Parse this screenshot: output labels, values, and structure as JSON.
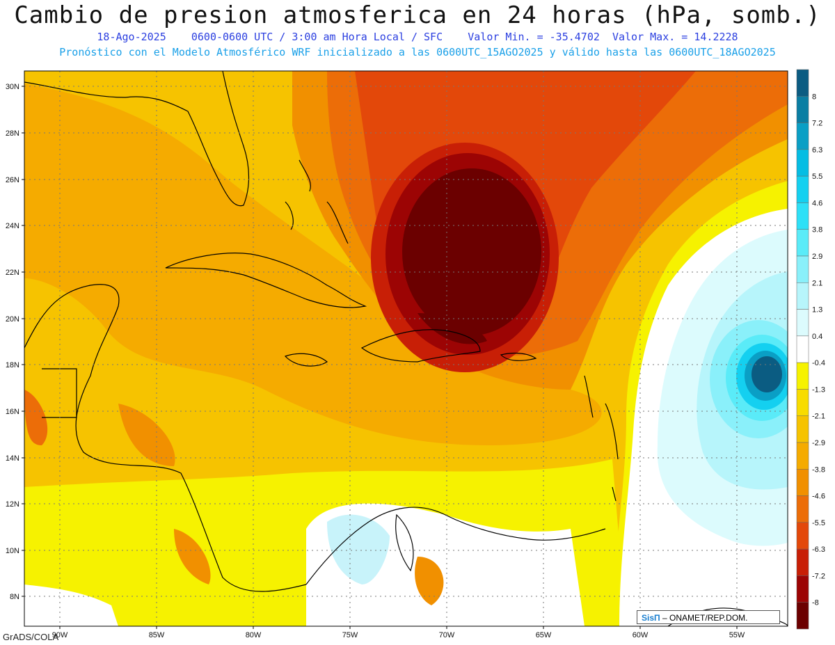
{
  "header": {
    "title": "Cambio de presion atmosferica en 24 horas (hPa, somb.)",
    "date": "18-Ago-2025",
    "times": "0600-0600 UTC / 3:00 am Hora Local / SFC",
    "min_label": "Valor Min. = -35.4702",
    "max_label": "Valor Max. = 14.2228",
    "forecast_note": "Pronóstico con el Modelo Atmosférico WRF inicializado a las 0600UTC_15AGO2025 y válido hasta las  0600UTC_18AGO2025"
  },
  "map": {
    "lat_labels": [
      "30N",
      "28N",
      "26N",
      "24N",
      "22N",
      "20N",
      "18N",
      "16N",
      "14N",
      "12N",
      "10N",
      "8N"
    ],
    "lon_labels": [
      "90W",
      "85W",
      "80W",
      "75W",
      "70W",
      "65W",
      "60W",
      "55W"
    ],
    "extremes": {
      "min_center": "low pressure fall centered near 22.5N 69W",
      "max_center": "pressure rise centered near 17.5N 54W"
    }
  },
  "colorbar": {
    "labels": [
      "8",
      "7.2",
      "6.3",
      "5.5",
      "4.6",
      "3.8",
      "2.9",
      "2.1",
      "1.3",
      "0.4",
      "-0.4",
      "-1.3",
      "-2.1",
      "-2.9",
      "-3.8",
      "-4.6",
      "-5.5",
      "-6.3",
      "-7.2",
      "-8"
    ],
    "colors": [
      "#0b5c82",
      "#0a7ea3",
      "#0a9fc5",
      "#05bde3",
      "#14d0f0",
      "#2ee0f7",
      "#5aebf8",
      "#8af0fa",
      "#b7f5fb",
      "#dcfbfd",
      "#ffffff",
      "#f6f200",
      "#f8dc00",
      "#f6c300",
      "#f5ab00",
      "#f19000",
      "#ec6d08",
      "#e3480a",
      "#c81f06",
      "#9c0404",
      "#6b0000"
    ]
  },
  "footer": {
    "software": "GrADS/COLA",
    "credit_brand": "SisΠ",
    "credit_org": "– ONAMET/REP.DOM."
  }
}
